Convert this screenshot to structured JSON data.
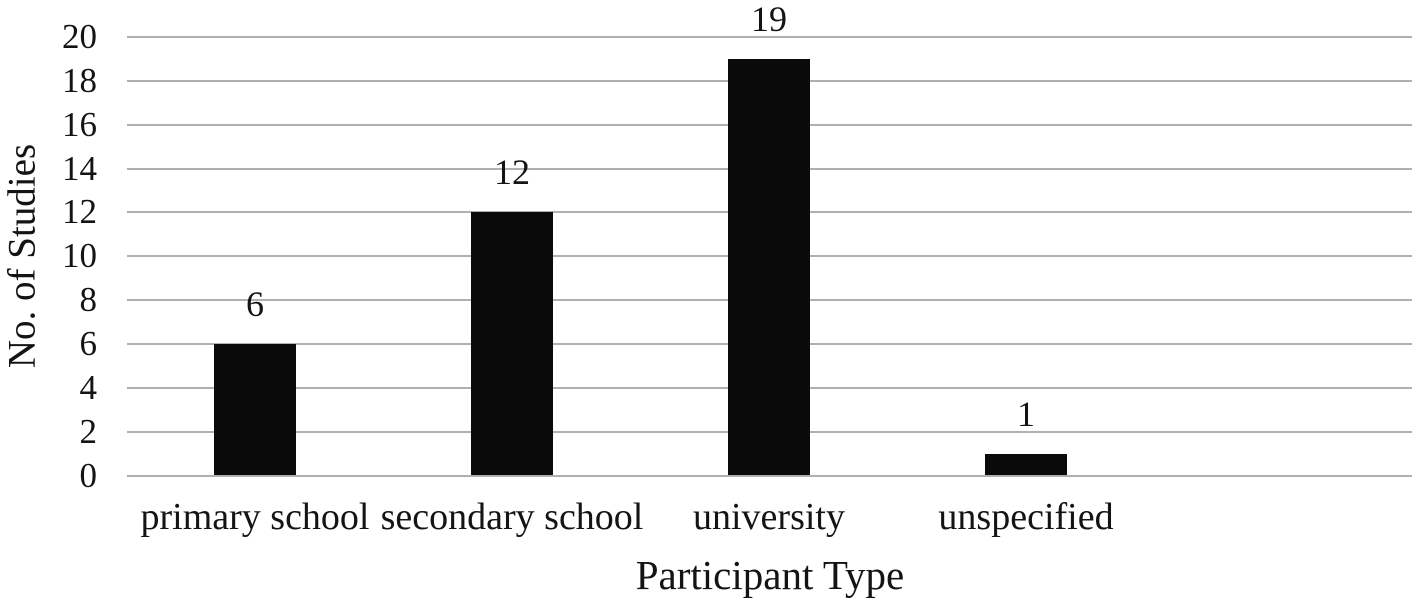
{
  "figure": {
    "background_color": "#ffffff",
    "bar_color": "#0a0a0a",
    "gridline_color": "#b0b0b0",
    "text_color": "#141414"
  },
  "chart_data": {
    "type": "bar",
    "title": "",
    "xlabel": "Participant Type",
    "ylabel": "No. of Studies",
    "categories": [
      "primary school",
      "secondary school",
      "university",
      "unspecified"
    ],
    "values": [
      6,
      12,
      19,
      1
    ],
    "value_labels": [
      "6",
      "12",
      "19",
      "1"
    ],
    "ytick_labels": [
      "0",
      "2",
      "4",
      "6",
      "8",
      "10",
      "12",
      "14",
      "16",
      "18",
      "20"
    ],
    "ylim": [
      0,
      20
    ],
    "ytick_step": 2,
    "grid": "horizontal-only",
    "legend": "none",
    "bar_fill": "solid-black"
  }
}
